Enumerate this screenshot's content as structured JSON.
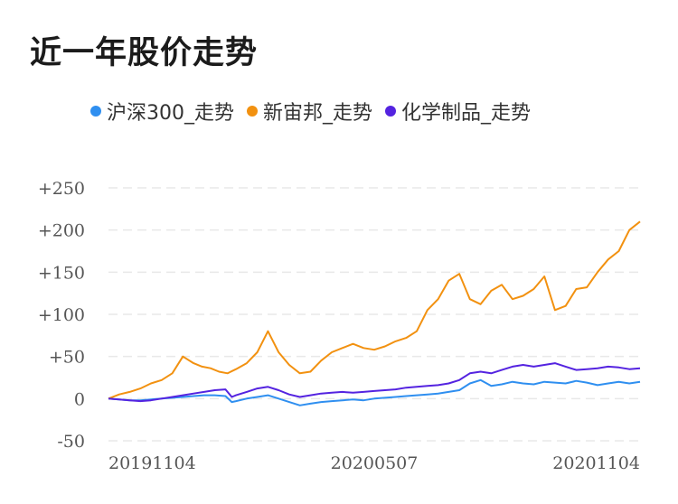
{
  "title": "近一年股价走势",
  "chart_data": {
    "type": "line",
    "title": "近一年股价走势",
    "y_ticks": [
      "+250",
      "+200",
      "+150",
      "+100",
      "+50",
      "0",
      "-50"
    ],
    "y_tick_values": [
      250,
      200,
      150,
      100,
      50,
      0,
      -50
    ],
    "ylim": [
      -50,
      250
    ],
    "x_ticks": [
      "20191104",
      "20200507",
      "20201104"
    ],
    "x_tick_positions": [
      0,
      125,
      250
    ],
    "xlim": [
      0,
      250
    ],
    "grid": true,
    "legend_position": "top",
    "series": [
      {
        "name": "沪深300_走势",
        "color": "#2f8ff0",
        "x": [
          0,
          5,
          10,
          15,
          20,
          25,
          30,
          35,
          40,
          45,
          50,
          55,
          58,
          60,
          65,
          70,
          75,
          80,
          85,
          90,
          95,
          100,
          105,
          110,
          115,
          120,
          125,
          130,
          135,
          140,
          145,
          150,
          155,
          160,
          165,
          170,
          175,
          180,
          185,
          190,
          195,
          200,
          205,
          210,
          215,
          220,
          225,
          230,
          235,
          240,
          245,
          250
        ],
        "values": [
          0,
          -1,
          -2,
          -2,
          -1,
          0,
          1,
          2,
          3,
          4,
          4,
          3,
          -4,
          -3,
          0,
          2,
          4,
          0,
          -4,
          -8,
          -6,
          -4,
          -3,
          -2,
          -1,
          -2,
          0,
          1,
          2,
          3,
          4,
          5,
          6,
          8,
          10,
          18,
          22,
          15,
          17,
          20,
          18,
          17,
          20,
          19,
          18,
          21,
          19,
          16,
          18,
          20,
          18,
          20
        ]
      },
      {
        "name": "新宙邦_走势",
        "color": "#f29110",
        "x": [
          0,
          5,
          10,
          15,
          20,
          25,
          30,
          35,
          40,
          44,
          48,
          52,
          56,
          60,
          65,
          70,
          75,
          78,
          80,
          85,
          90,
          95,
          100,
          105,
          110,
          115,
          120,
          125,
          130,
          135,
          140,
          145,
          150,
          155,
          160,
          165,
          170,
          175,
          180,
          185,
          190,
          195,
          200,
          205,
          210,
          215,
          220,
          225,
          230,
          235,
          240,
          245,
          250
        ],
        "values": [
          0,
          5,
          8,
          12,
          18,
          22,
          30,
          50,
          42,
          38,
          36,
          32,
          30,
          35,
          42,
          55,
          80,
          65,
          55,
          40,
          30,
          32,
          45,
          55,
          60,
          65,
          60,
          58,
          62,
          68,
          72,
          80,
          105,
          118,
          140,
          148,
          118,
          112,
          128,
          135,
          118,
          122,
          130,
          145,
          105,
          110,
          130,
          132,
          150,
          165,
          175,
          200,
          210
        ]
      },
      {
        "name": "化学制品_走势",
        "color": "#5423e0",
        "x": [
          0,
          5,
          10,
          15,
          20,
          25,
          30,
          35,
          40,
          45,
          50,
          55,
          58,
          60,
          65,
          70,
          75,
          80,
          85,
          90,
          95,
          100,
          105,
          110,
          115,
          120,
          125,
          130,
          135,
          140,
          145,
          150,
          155,
          160,
          165,
          170,
          175,
          180,
          185,
          190,
          195,
          200,
          205,
          210,
          215,
          220,
          225,
          230,
          235,
          240,
          245,
          250
        ],
        "values": [
          0,
          -1,
          -2,
          -3,
          -2,
          0,
          2,
          4,
          6,
          8,
          10,
          11,
          2,
          4,
          8,
          12,
          14,
          10,
          5,
          2,
          4,
          6,
          7,
          8,
          7,
          8,
          9,
          10,
          11,
          13,
          14,
          15,
          16,
          18,
          22,
          30,
          32,
          30,
          34,
          38,
          40,
          38,
          40,
          42,
          38,
          34,
          35,
          36,
          38,
          37,
          35,
          36
        ]
      }
    ]
  }
}
